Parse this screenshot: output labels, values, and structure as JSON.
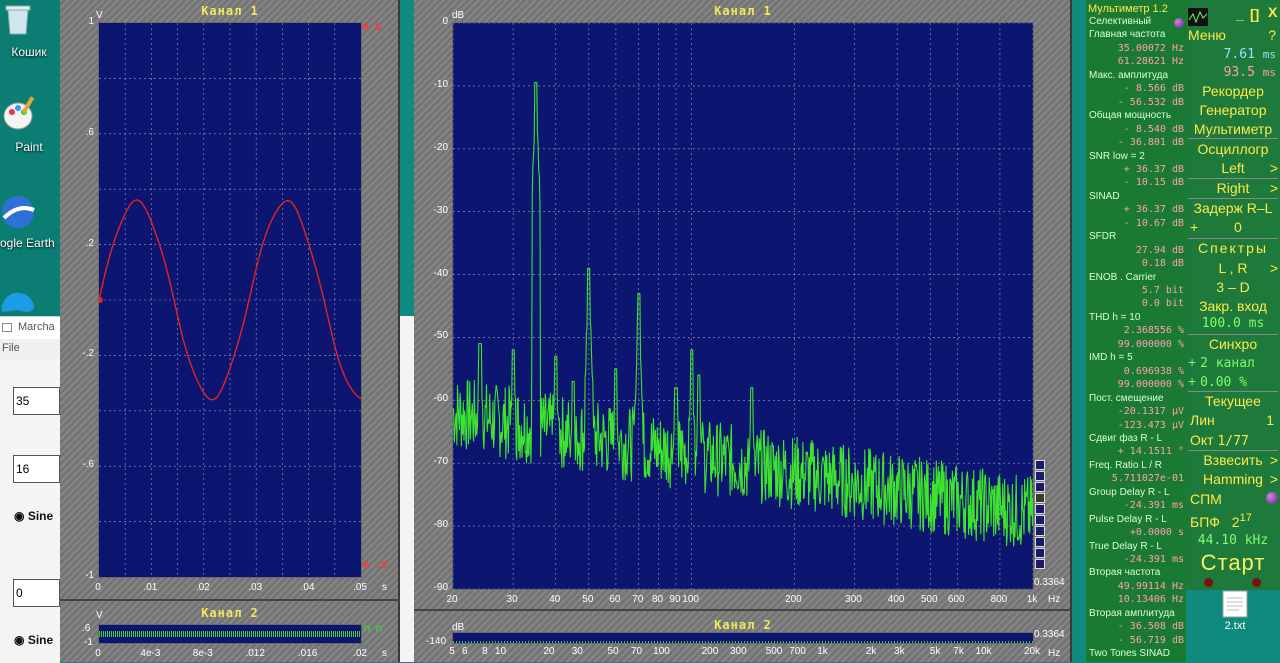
{
  "desktop": {
    "icons": [
      {
        "label": "Кошик"
      },
      {
        "label": "Paint"
      },
      {
        "label": "ogle Earth"
      }
    ],
    "file_label": "2.txt"
  },
  "bg_window": {
    "title": "Marcha",
    "menu_file": "File",
    "field1": "35",
    "field2": "16",
    "field3": "0",
    "radio1": "Sine",
    "radio2": "Sine"
  },
  "osc": {
    "ch1_title": "Канал 1",
    "ch2_title": "Канал 2",
    "v_unit": "V",
    "s_unit": "s",
    "y_ticks": [
      "1",
      ".6",
      ".2",
      "-.2",
      "-.6",
      "-1"
    ],
    "x_ticks": [
      "0",
      ".01",
      ".02",
      ".03",
      ".04",
      ".05"
    ],
    "ch2_y_ticks": [
      ".6",
      "-1"
    ],
    "ch2_x_ticks": [
      "0",
      "4e-3",
      "8e-3",
      ".012",
      ".016",
      ".02"
    ],
    "indicator_top": "0  0",
    "indicator_bot": "0 .0",
    "wave_color": "#e82020"
  },
  "spec": {
    "ch1_title": "Канал 1",
    "ch2_title": "Канал 2",
    "db_unit": "dB",
    "hz_unit": "Hz",
    "y_ticks": [
      "0",
      "-10",
      "-20",
      "-30",
      "-40",
      "-50",
      "-60",
      "-70",
      "-80",
      "-90"
    ],
    "x_ticks": [
      {
        "f": 20,
        "l": "20"
      },
      {
        "f": 30,
        "l": "30"
      },
      {
        "f": 40,
        "l": "40"
      },
      {
        "f": 50,
        "l": "50"
      },
      {
        "f": 60,
        "l": "60"
      },
      {
        "f": 70,
        "l": "70"
      },
      {
        "f": 80,
        "l": "80"
      },
      {
        "f": 90,
        "l": "90"
      },
      {
        "f": 100,
        "l": "100"
      },
      {
        "f": 200,
        "l": "200"
      },
      {
        "f": 300,
        "l": "300"
      },
      {
        "f": 400,
        "l": "400"
      },
      {
        "f": 500,
        "l": "500"
      },
      {
        "f": 600,
        "l": "600"
      },
      {
        "f": 800,
        "l": "800"
      },
      {
        "f": 1000,
        "l": "1k"
      }
    ],
    "corner_value": "0.3364",
    "ch2_x_ticks": [
      {
        "f": 5,
        "l": "5"
      },
      {
        "f": 6,
        "l": "6"
      },
      {
        "f": 8,
        "l": "8"
      },
      {
        "f": 10,
        "l": "10"
      },
      {
        "f": 20,
        "l": "20"
      },
      {
        "f": 30,
        "l": "30"
      },
      {
        "f": 50,
        "l": "50"
      },
      {
        "f": 70,
        "l": "70"
      },
      {
        "f": 100,
        "l": "100"
      },
      {
        "f": 200,
        "l": "200"
      },
      {
        "f": 300,
        "l": "300"
      },
      {
        "f": 500,
        "l": "500"
      },
      {
        "f": 700,
        "l": "700"
      },
      {
        "f": 1000,
        "l": "1k"
      },
      {
        "f": 2000,
        "l": "2k"
      },
      {
        "f": 3000,
        "l": "3k"
      },
      {
        "f": 5000,
        "l": "5k"
      },
      {
        "f": 7000,
        "l": "7k"
      },
      {
        "f": 10000,
        "l": "10k"
      },
      {
        "f": 20000,
        "l": "20k"
      }
    ],
    "ch2_y_tick": "-140",
    "ch2_corner": "0.3364",
    "line_color": "#3de32c"
  },
  "multimeter": {
    "title": "Мультиметр 1.2",
    "rows": [
      {
        "t": "h",
        "v": "Селективный"
      },
      {
        "t": "h",
        "v": "Главная частота"
      },
      {
        "t": "v",
        "v": "35.00072  Hz"
      },
      {
        "t": "v",
        "v": "61.28621  Hz"
      },
      {
        "t": "h",
        "v": "Макс. амплитуда"
      },
      {
        "t": "v",
        "v": "-   8.566 dB"
      },
      {
        "t": "v",
        "v": "-  56.532 dB"
      },
      {
        "t": "h",
        "v": "Общая мощность"
      },
      {
        "t": "v",
        "v": "-   8.540 dB"
      },
      {
        "t": "v",
        "v": "-  36.801 dB"
      },
      {
        "t": "h",
        "v": "SNR      low = 2"
      },
      {
        "t": "v",
        "v": "+  36.37 dB"
      },
      {
        "t": "v",
        "v": "-  10.15 dB"
      },
      {
        "t": "h",
        "v": "SINAD"
      },
      {
        "t": "v",
        "v": "+  36.37 dB"
      },
      {
        "t": "v",
        "v": "-  10.67 dB"
      },
      {
        "t": "h",
        "v": "SFDR"
      },
      {
        "t": "v",
        "v": "27.94 dB"
      },
      {
        "t": "v",
        "v": "0.18 dB"
      },
      {
        "t": "h",
        "v": "ENOB . Carrier"
      },
      {
        "t": "v",
        "v": "5.7 bit"
      },
      {
        "t": "v",
        "v": "0.0 bit"
      },
      {
        "t": "h",
        "v": "THD      h = 10"
      },
      {
        "t": "v",
        "v": "2.368556 %"
      },
      {
        "t": "v",
        "v": "99.000000 %"
      },
      {
        "t": "h",
        "v": "IMD        h =  5"
      },
      {
        "t": "v",
        "v": "0.696938 %"
      },
      {
        "t": "v",
        "v": "99.000000 %"
      },
      {
        "t": "h",
        "v": "Пост. смещение"
      },
      {
        "t": "v",
        "v": "-20.1317 µV"
      },
      {
        "t": "v",
        "v": "-123.473 µV"
      },
      {
        "t": "h",
        "v": "Сдвиг фаз R - L"
      },
      {
        "t": "v",
        "v": "+ 14.1511 °"
      },
      {
        "t": "h",
        "v": "Freq. Ratio  L / R"
      },
      {
        "t": "v",
        "v": "5.711027e-01"
      },
      {
        "t": "h",
        "v": "Group Delay R - L"
      },
      {
        "t": "v",
        "v": "-24.391 ms"
      },
      {
        "t": "h",
        "v": "Pulse Delay R - L"
      },
      {
        "t": "v",
        "v": "+0.0000  s"
      },
      {
        "t": "h",
        "v": "True  Delay R - L"
      },
      {
        "t": "v",
        "v": "-24.391 ms"
      },
      {
        "t": "h",
        "v": "Вторая частота"
      },
      {
        "t": "v",
        "v": "49.99114  Hz"
      },
      {
        "t": "v",
        "v": "10.13406  Hz"
      },
      {
        "t": "h",
        "v": "Вторая амплитуда"
      },
      {
        "t": "v",
        "v": "-  36.508 dB"
      },
      {
        "t": "v",
        "v": "-  56.719 dB"
      },
      {
        "t": "h",
        "v": "Two Tones SINAD"
      }
    ]
  },
  "panel": {
    "minimize": "_",
    "restore": "[]",
    "close": "X",
    "menu": "Меню",
    "help": "?",
    "time1": "7.61",
    "time1_unit": "ms",
    "time2": "93.5",
    "time2_unit": "ms",
    "recorder": "Рекордер",
    "generator": "Генератор",
    "multimeter": "Мультиметр",
    "oscillograph": "Осциллогр",
    "left": "Left",
    "right": "Right",
    "delay": "Задерж R–L",
    "delay_sign": "+",
    "delay_val": "0",
    "spectra": "Спектры",
    "lr": "L , R",
    "threed": "3 – D",
    "close_in": "Закр. вход",
    "close_in_val": "100.0 ms",
    "sync": "Синхро",
    "sync_plus": "+",
    "sync_ch": "2 канал",
    "sync_plus2": "+",
    "sync_pct": "0.00 %",
    "current": "Текущее",
    "lin": "Лин",
    "lin_val": "1",
    "oct": "Окт",
    "oct_val": "1/77",
    "weigh": "Взвесить",
    "hamming": "Hamming",
    "spm": "СПМ",
    "bpf": "БПФ",
    "bpf_base": "2",
    "bpf_exp": "17",
    "rate": "44.10 kHz",
    "start": "Старт",
    "arrow": ">"
  }
}
